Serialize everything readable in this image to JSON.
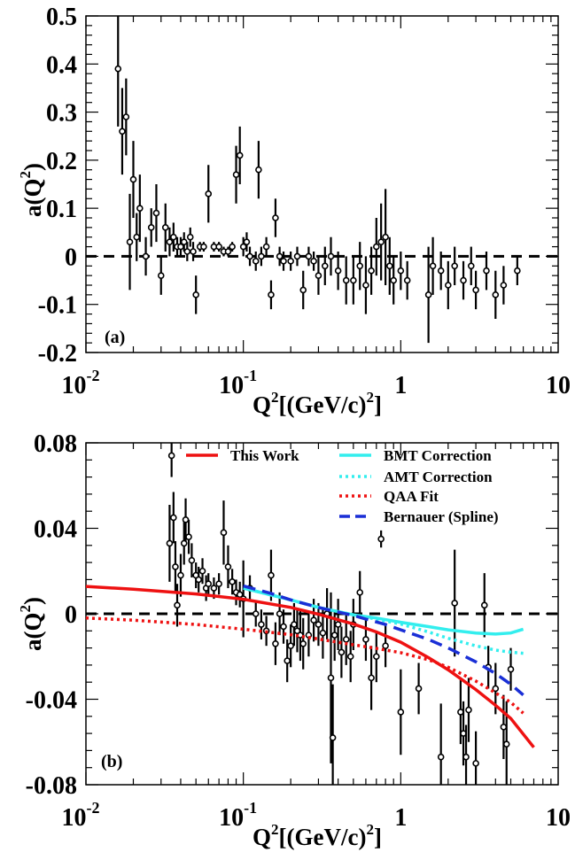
{
  "chart_data": [
    {
      "type": "scatter",
      "panel_label": "(a)",
      "xlabel": "Q^2[(GeV/c)^2]",
      "ylabel": "a(Q^2)",
      "xscale": "log",
      "xlim": [
        0.01,
        10
      ],
      "ylim": [
        -0.2,
        0.5
      ],
      "yticks": [
        "-0.2",
        "-0.1",
        "0",
        "0.1",
        "0.2",
        "0.3",
        "0.4",
        "0.5"
      ],
      "reference_line": {
        "y": 0,
        "style": "dashed"
      },
      "series": [
        {
          "values": [
            [
              0.016,
              0.39,
              0.12
            ],
            [
              0.017,
              0.26,
              0.09
            ],
            [
              0.018,
              0.29,
              0.08
            ],
            [
              0.019,
              0.03,
              0.1
            ],
            [
              0.02,
              0.16,
              0.08
            ],
            [
              0.021,
              0.04,
              0.05
            ],
            [
              0.022,
              0.1,
              0.07
            ],
            [
              0.024,
              0.0,
              0.04
            ],
            [
              0.026,
              0.06,
              0.04
            ],
            [
              0.028,
              0.09,
              0.06
            ],
            [
              0.03,
              -0.04,
              0.04
            ],
            [
              0.032,
              0.06,
              0.05
            ],
            [
              0.034,
              0.03,
              0.03
            ],
            [
              0.036,
              0.04,
              0.03
            ],
            [
              0.038,
              0.02,
              0.02
            ],
            [
              0.04,
              0.02,
              0.02
            ],
            [
              0.042,
              0.03,
              0.02
            ],
            [
              0.044,
              0.01,
              0.02
            ],
            [
              0.046,
              0.04,
              0.02
            ],
            [
              0.048,
              0.01,
              0.02
            ],
            [
              0.05,
              -0.08,
              0.04
            ],
            [
              0.053,
              0.02,
              0.01
            ],
            [
              0.056,
              0.02,
              0.01
            ],
            [
              0.06,
              0.13,
              0.06
            ],
            [
              0.065,
              0.02,
              0.01
            ],
            [
              0.07,
              0.02,
              0.01
            ],
            [
              0.075,
              0.01,
              0.01
            ],
            [
              0.08,
              0.01,
              0.01
            ],
            [
              0.085,
              0.02,
              0.01
            ],
            [
              0.09,
              0.17,
              0.06
            ],
            [
              0.095,
              0.21,
              0.06
            ],
            [
              0.1,
              0.02,
              0.02
            ],
            [
              0.105,
              0.03,
              0.02
            ],
            [
              0.11,
              0.0,
              0.02
            ],
            [
              0.12,
              -0.01,
              0.02
            ],
            [
              0.125,
              0.18,
              0.06
            ],
            [
              0.13,
              0.0,
              0.02
            ],
            [
              0.14,
              0.02,
              0.02
            ],
            [
              0.15,
              -0.08,
              0.03
            ],
            [
              0.16,
              0.08,
              0.04
            ],
            [
              0.17,
              0.0,
              0.02
            ],
            [
              0.18,
              -0.01,
              0.02
            ],
            [
              0.2,
              -0.01,
              0.02
            ],
            [
              0.22,
              0.0,
              0.02
            ],
            [
              0.24,
              -0.07,
              0.04
            ],
            [
              0.26,
              0.0,
              0.02
            ],
            [
              0.28,
              -0.01,
              0.02
            ],
            [
              0.3,
              -0.04,
              0.04
            ],
            [
              0.33,
              -0.02,
              0.04
            ],
            [
              0.36,
              0.0,
              0.04
            ],
            [
              0.4,
              -0.03,
              0.04
            ],
            [
              0.45,
              -0.05,
              0.05
            ],
            [
              0.5,
              -0.05,
              0.05
            ],
            [
              0.55,
              -0.02,
              0.05
            ],
            [
              0.6,
              -0.06,
              0.06
            ],
            [
              0.65,
              -0.03,
              0.05
            ],
            [
              0.7,
              0.02,
              0.06
            ],
            [
              0.75,
              0.03,
              0.08
            ],
            [
              0.8,
              0.04,
              0.1
            ],
            [
              0.85,
              -0.02,
              0.06
            ],
            [
              0.9,
              -0.05,
              0.05
            ],
            [
              1.0,
              -0.03,
              0.04
            ],
            [
              1.1,
              -0.05,
              0.04
            ],
            [
              1.5,
              -0.08,
              0.1
            ],
            [
              1.6,
              -0.02,
              0.06
            ],
            [
              1.8,
              -0.03,
              0.04
            ],
            [
              2.0,
              -0.06,
              0.05
            ],
            [
              2.2,
              -0.02,
              0.04
            ],
            [
              2.5,
              -0.05,
              0.04
            ],
            [
              2.8,
              -0.02,
              0.04
            ],
            [
              3.0,
              -0.07,
              0.04
            ],
            [
              3.5,
              -0.03,
              0.04
            ],
            [
              4.0,
              -0.08,
              0.05
            ],
            [
              4.5,
              -0.06,
              0.04
            ],
            [
              5.5,
              -0.03,
              0.03
            ]
          ]
        }
      ]
    },
    {
      "type": "scatter",
      "panel_label": "(b)",
      "xlabel": "Q^2[(GeV/c)^2]",
      "ylabel": "a(Q^2)",
      "xscale": "log",
      "xlim": [
        0.01,
        10
      ],
      "ylim": [
        -0.08,
        0.08
      ],
      "yticks": [
        "-0.08",
        "-0.04",
        "0",
        "0.04",
        "0.08"
      ],
      "reference_line": {
        "y": 0,
        "style": "dashed"
      },
      "legend_position": "top-right",
      "curves": [
        {
          "name": "This Work",
          "color": "#ee1111",
          "style": "solid",
          "x": [
            0.01,
            0.02,
            0.05,
            0.1,
            0.2,
            0.3,
            0.5,
            0.7,
            1.0,
            1.5,
            2.0,
            3.0,
            4.0,
            5.0,
            7.0
          ],
          "y": [
            0.0128,
            0.0115,
            0.0093,
            0.0068,
            0.003,
            -0.0002,
            -0.0048,
            -0.0085,
            -0.0133,
            -0.0205,
            -0.0262,
            -0.0355,
            -0.0428,
            -0.049,
            -0.0625
          ]
        },
        {
          "name": "BMT Correction",
          "color": "#33eeee",
          "style": "solid",
          "x": [
            0.1,
            0.2,
            0.3,
            0.5,
            0.7,
            1.0,
            1.5,
            2.0,
            3.0,
            4.0,
            5.0,
            6.0
          ],
          "y": [
            0.012,
            0.0065,
            0.003,
            -0.0005,
            -0.002,
            -0.004,
            -0.006,
            -0.0075,
            -0.009,
            -0.0095,
            -0.009,
            -0.0072
          ]
        },
        {
          "name": "AMT Correction",
          "color": "#33eeee",
          "style": "dotted",
          "x": [
            0.1,
            0.2,
            0.3,
            0.5,
            0.7,
            1.0,
            1.5,
            2.0,
            3.0,
            4.0,
            5.0,
            6.0
          ],
          "y": [
            0.012,
            0.0065,
            0.003,
            -0.0005,
            -0.0025,
            -0.0048,
            -0.0085,
            -0.0115,
            -0.015,
            -0.017,
            -0.018,
            -0.0185
          ]
        },
        {
          "name": "QAA Fit",
          "color": "#ee1111",
          "style": "dotted",
          "x": [
            0.01,
            0.02,
            0.05,
            0.1,
            0.2,
            0.3,
            0.5,
            0.7,
            1.0,
            1.5,
            2.0,
            3.0,
            4.0,
            5.0,
            6.0
          ],
          "y": [
            -0.002,
            -0.003,
            -0.005,
            -0.0072,
            -0.0098,
            -0.0118,
            -0.0145,
            -0.0162,
            -0.0182,
            -0.0215,
            -0.025,
            -0.0315,
            -0.037,
            -0.0415,
            -0.0465
          ]
        },
        {
          "name": "Bernauer (Spline)",
          "color": "#1a2fd6",
          "style": "dashed",
          "x": [
            0.1,
            0.15,
            0.2,
            0.3,
            0.4,
            0.5,
            0.6,
            0.8,
            1.0,
            1.5,
            2.0,
            3.0,
            4.0,
            5.0,
            6.0
          ],
          "y": [
            0.013,
            0.0095,
            0.0065,
            0.003,
            0.0008,
            -0.0008,
            -0.0025,
            -0.005,
            -0.0075,
            -0.012,
            -0.016,
            -0.0225,
            -0.028,
            -0.033,
            -0.038
          ]
        }
      ],
      "series": [
        {
          "values": [
            [
              0.034,
              0.033,
              0.018
            ],
            [
              0.035,
              0.074,
              0.01
            ],
            [
              0.036,
              0.045,
              0.012
            ],
            [
              0.037,
              0.022,
              0.012
            ],
            [
              0.038,
              0.004,
              0.01
            ],
            [
              0.04,
              0.018,
              0.01
            ],
            [
              0.042,
              0.033,
              0.01
            ],
            [
              0.043,
              0.044,
              0.01
            ],
            [
              0.045,
              0.036,
              0.008
            ],
            [
              0.047,
              0.025,
              0.008
            ],
            [
              0.05,
              0.018,
              0.006
            ],
            [
              0.052,
              0.016,
              0.006
            ],
            [
              0.055,
              0.02,
              0.006
            ],
            [
              0.058,
              0.012,
              0.006
            ],
            [
              0.06,
              0.014,
              0.005
            ],
            [
              0.065,
              0.012,
              0.005
            ],
            [
              0.07,
              0.014,
              0.005
            ],
            [
              0.075,
              0.038,
              0.015
            ],
            [
              0.08,
              0.022,
              0.01
            ],
            [
              0.085,
              0.015,
              0.006
            ],
            [
              0.09,
              0.01,
              0.006
            ],
            [
              0.095,
              0.009,
              0.006
            ],
            [
              0.1,
              0.007,
              0.018
            ],
            [
              0.11,
              0.012,
              0.006
            ],
            [
              0.12,
              0.0,
              0.006
            ],
            [
              0.13,
              -0.005,
              0.007
            ],
            [
              0.14,
              -0.008,
              0.007
            ],
            [
              0.15,
              0.018,
              0.012
            ],
            [
              0.16,
              -0.014,
              0.01
            ],
            [
              0.17,
              0.0,
              0.01
            ],
            [
              0.18,
              -0.006,
              0.008
            ],
            [
              0.19,
              -0.022,
              0.01
            ],
            [
              0.2,
              -0.015,
              0.01
            ],
            [
              0.21,
              -0.005,
              0.01
            ],
            [
              0.22,
              -0.008,
              0.01
            ],
            [
              0.23,
              -0.01,
              0.012
            ],
            [
              0.24,
              -0.014,
              0.012
            ],
            [
              0.26,
              -0.01,
              0.01
            ],
            [
              0.28,
              -0.003,
              0.01
            ],
            [
              0.3,
              -0.005,
              0.01
            ],
            [
              0.32,
              -0.009,
              0.012
            ],
            [
              0.34,
              0.0,
              0.012
            ],
            [
              0.36,
              -0.03,
              0.04
            ],
            [
              0.37,
              -0.058,
              0.025
            ],
            [
              0.38,
              -0.01,
              0.012
            ],
            [
              0.4,
              -0.005,
              0.012
            ],
            [
              0.42,
              -0.018,
              0.012
            ],
            [
              0.45,
              -0.012,
              0.012
            ],
            [
              0.48,
              -0.02,
              0.012
            ],
            [
              0.5,
              -0.005,
              0.012
            ],
            [
              0.55,
              0.01,
              0.01
            ],
            [
              0.6,
              -0.012,
              0.01
            ],
            [
              0.65,
              -0.03,
              0.015
            ],
            [
              0.7,
              -0.02,
              0.012
            ],
            [
              0.75,
              0.035,
              0.004
            ],
            [
              0.8,
              -0.015,
              0.01
            ],
            [
              1.0,
              -0.046,
              0.02
            ],
            [
              1.3,
              -0.035,
              0.012
            ],
            [
              1.8,
              -0.067,
              0.025
            ],
            [
              2.2,
              0.005,
              0.025
            ],
            [
              2.4,
              -0.046,
              0.015
            ],
            [
              2.5,
              -0.056,
              0.015
            ],
            [
              2.6,
              -0.067,
              0.015
            ],
            [
              2.7,
              -0.045,
              0.015
            ],
            [
              3.0,
              -0.07,
              0.015
            ],
            [
              3.4,
              0.004,
              0.015
            ],
            [
              3.6,
              -0.025,
              0.01
            ],
            [
              4.0,
              -0.035,
              0.012
            ],
            [
              4.5,
              -0.053,
              0.015
            ],
            [
              5.0,
              -0.026,
              0.01
            ],
            [
              4.7,
              -0.061,
              0.02
            ]
          ]
        }
      ]
    }
  ],
  "axis_labels": {
    "x_main": "Q",
    "x_sup": "2",
    "x_rest": "[(GeV/c)",
    "x_sup2": "2",
    "x_end": "]",
    "y_main": "a(Q",
    "y_sup": "2",
    "y_end": ")"
  },
  "x_ticks": [
    {
      "base": "10",
      "exp": "-2"
    },
    {
      "base": "10",
      "exp": "-1"
    },
    {
      "base": "1",
      "exp": ""
    },
    {
      "base": "10",
      "exp": ""
    }
  ]
}
